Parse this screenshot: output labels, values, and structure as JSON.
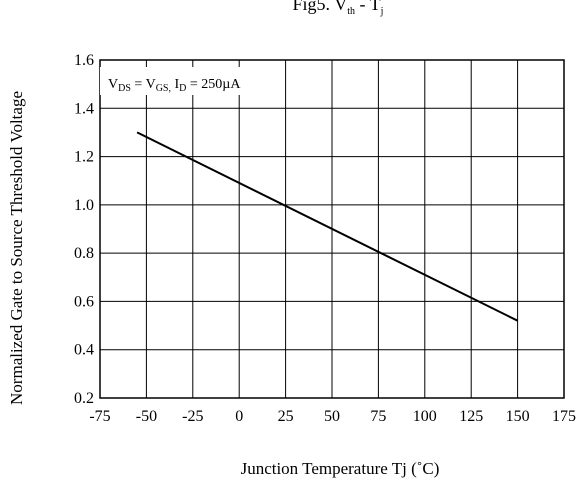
{
  "chart_data": {
    "type": "line",
    "title": {
      "main": "Fig5. V",
      "sub1": "th",
      "sep": " - T",
      "sub2": "j"
    },
    "xlabel": "Junction Temperature  Tj (",
    "xunit": "˚C",
    "xunit_close": ")",
    "ylabel": "Normalized Gate to Source Threshold Voltage",
    "annotation": {
      "v1": "V",
      "s1": "DS",
      "t1": " = V",
      "s2": "GS,",
      "t2": " I",
      "s3": "D",
      "t3": " = 250µA"
    },
    "xlim": [
      -75,
      175
    ],
    "ylim": [
      0.2,
      1.6
    ],
    "x_ticks": [
      "-75",
      "-50",
      "-25",
      "0",
      "25",
      "50",
      "75",
      "100",
      "125",
      "150",
      "175"
    ],
    "y_ticks": [
      "0.2",
      "0.4",
      "0.6",
      "0.8",
      "1.0",
      "1.2",
      "1.4",
      "1.6"
    ],
    "grid": true,
    "series": [
      {
        "x": [
          -55,
          150
        ],
        "y": [
          1.3,
          0.52
        ]
      }
    ]
  }
}
